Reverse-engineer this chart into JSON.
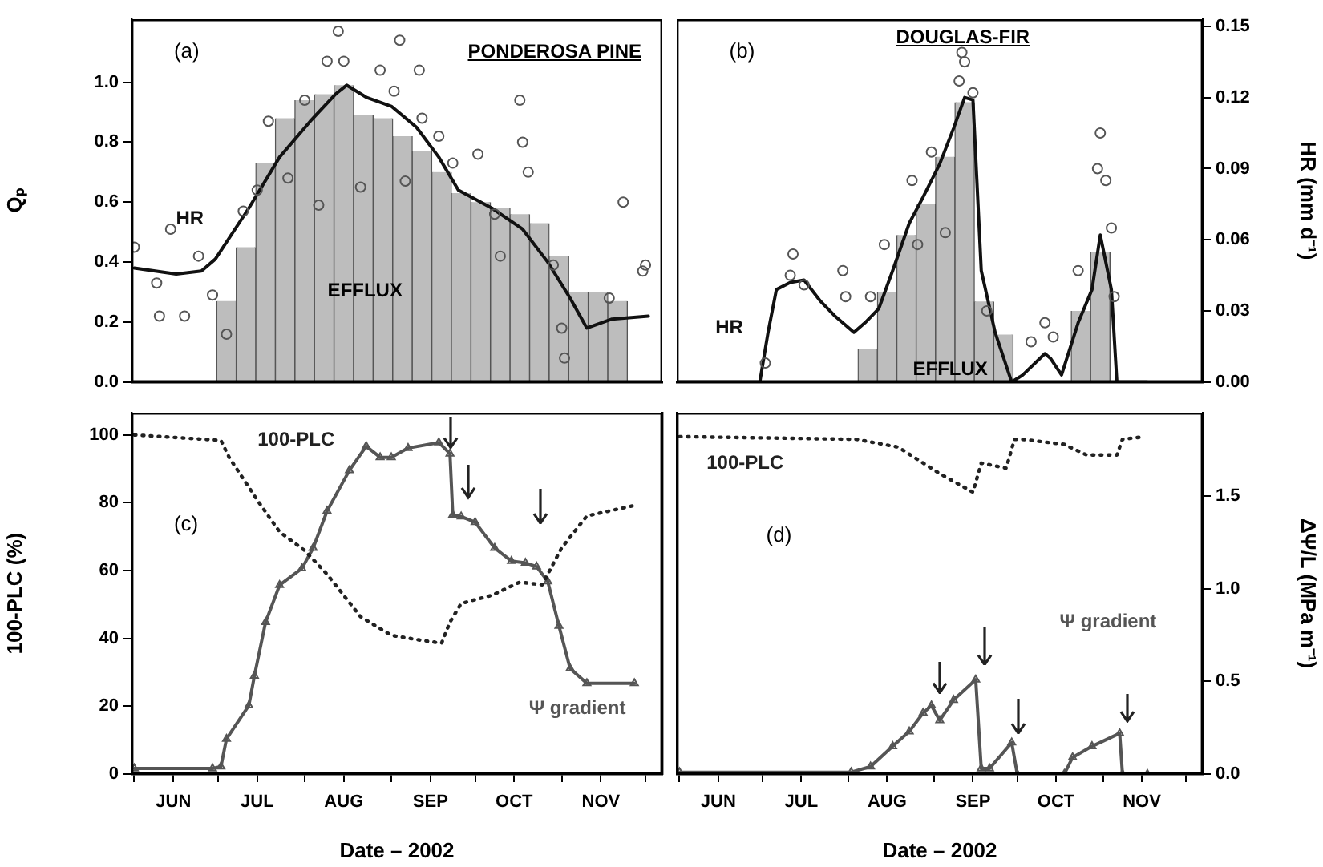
{
  "chart_data": [
    {
      "type": "line",
      "title": "PONDEROSA PINE",
      "ylabel": "Qₚ",
      "annotations": [
        "(a)"
      ],
      "tick_labels": [
        "y"
      ],
      "xlim": [
        "2002-05-31",
        "2002-12-07"
      ],
      "ylim": [
        0,
        1.21
      ],
      "yticks": [
        {
          "value": 0,
          "label": "0.0"
        },
        {
          "value": 0.2,
          "label": "0.2"
        },
        {
          "value": 0.4,
          "label": "0.4"
        },
        {
          "value": 0.6,
          "label": "0.6"
        },
        {
          "value": 0.8,
          "label": "0.8"
        },
        {
          "value": 1,
          "label": "1.0"
        }
      ],
      "series": [
        {
          "name": "EFFLUX",
          "type": "bar",
          "color": "#bdbdbd",
          "x": [
            "2002-07-04",
            "2002-07-11",
            "2002-07-18",
            "2002-07-25",
            "2002-08-01",
            "2002-08-08",
            "2002-08-15",
            "2002-08-22",
            "2002-08-29",
            "2002-09-05",
            "2002-09-12",
            "2002-09-19",
            "2002-09-26",
            "2002-10-03",
            "2002-10-10",
            "2002-10-17",
            "2002-10-24",
            "2002-10-31",
            "2002-11-07",
            "2002-11-14",
            "2002-11-21"
          ],
          "values": [
            0.27,
            0.45,
            0.73,
            0.88,
            0.94,
            0.96,
            0.99,
            0.89,
            0.88,
            0.82,
            0.77,
            0.7,
            0.63,
            0.6,
            0.58,
            0.56,
            0.53,
            0.42,
            0.3,
            0.3,
            0.27
          ]
        },
        {
          "type": "scatter",
          "color": "#555555",
          "marker": "circle",
          "x": [
            "2002-06-01",
            "2002-06-09",
            "2002-06-10",
            "2002-06-14",
            "2002-06-19",
            "2002-06-24",
            "2002-06-29",
            "2002-07-04",
            "2002-07-10",
            "2002-07-15",
            "2002-07-19",
            "2002-07-26",
            "2002-08-01",
            "2002-08-06",
            "2002-08-09",
            "2002-08-13",
            "2002-08-15",
            "2002-08-21",
            "2002-08-28",
            "2002-09-02",
            "2002-09-04",
            "2002-09-06",
            "2002-09-11",
            "2002-09-12",
            "2002-09-18",
            "2002-09-23",
            "2002-10-02",
            "2002-10-08",
            "2002-10-10",
            "2002-10-17",
            "2002-10-18",
            "2002-10-20",
            "2002-10-29",
            "2002-11-01",
            "2002-11-02",
            "2002-11-18",
            "2002-11-23",
            "2002-11-30",
            "2002-12-01"
          ],
          "values": [
            0.45,
            0.33,
            0.22,
            0.51,
            0.22,
            0.42,
            0.29,
            0.16,
            0.57,
            0.64,
            0.87,
            0.68,
            0.94,
            0.59,
            1.07,
            1.17,
            1.07,
            0.65,
            1.04,
            0.97,
            1.14,
            0.67,
            1.04,
            0.88,
            0.82,
            0.73,
            0.76,
            0.56,
            0.42,
            0.94,
            0.8,
            0.7,
            0.39,
            0.18,
            0.08,
            0.28,
            0.6,
            0.37,
            0.39
          ]
        },
        {
          "name": "HR",
          "color": "#111111",
          "marker": "none",
          "x": [
            "2002-06-01",
            "2002-06-16",
            "2002-06-25",
            "2002-06-30",
            "2002-07-12",
            "2002-07-23",
            "2002-08-03",
            "2002-08-12",
            "2002-08-16",
            "2002-08-23",
            "2002-09-01",
            "2002-09-10",
            "2002-09-18",
            "2002-09-25",
            "2002-10-07",
            "2002-10-18",
            "2002-10-27",
            "2002-11-04",
            "2002-11-10",
            "2002-11-19",
            "2002-12-02"
          ],
          "values": [
            0.38,
            0.36,
            0.37,
            0.41,
            0.58,
            0.75,
            0.87,
            0.96,
            0.99,
            0.95,
            0.92,
            0.85,
            0.75,
            0.64,
            0.58,
            0.51,
            0.4,
            0.28,
            0.18,
            0.21,
            0.22
          ]
        }
      ]
    },
    {
      "type": "line",
      "title": "DOUGLAS-FIR",
      "y2label": "HR (mm d⁻¹)",
      "annotations": [
        "(b)"
      ],
      "tick_labels": [
        "y2"
      ],
      "xlim": [
        "2002-05-31",
        "2002-12-07"
      ],
      "y2lim": [
        0,
        0.153
      ],
      "y2ticks": [
        {
          "value": 0,
          "label": "0.00"
        },
        {
          "value": 0.03,
          "label": "0.03"
        },
        {
          "value": 0.06,
          "label": "0.06"
        },
        {
          "value": 0.09,
          "label": "0.09"
        },
        {
          "value": 0.12,
          "label": "0.12"
        },
        {
          "value": 0.15,
          "label": "0.15"
        }
      ],
      "series": [
        {
          "name": "EFFLUX",
          "type": "bar",
          "axis": "y2",
          "color": "#bdbdbd",
          "x": [
            "2002-08-08",
            "2002-08-15",
            "2002-08-22",
            "2002-08-29",
            "2002-09-05",
            "2002-09-12",
            "2002-09-19",
            "2002-09-26",
            "2002-10-03",
            "2002-10-10",
            "2002-10-17",
            "2002-10-24",
            "2002-10-31"
          ],
          "values": [
            0.014,
            0.038,
            0.062,
            0.075,
            0.095,
            0.118,
            0.034,
            0.02,
            0,
            0,
            0,
            0.03,
            0.055
          ]
        },
        {
          "type": "scatter",
          "axis": "y2",
          "color": "#555555",
          "marker": "circle",
          "x": [
            "2002-07-02",
            "2002-07-11",
            "2002-07-12",
            "2002-07-16",
            "2002-07-30",
            "2002-07-31",
            "2002-08-09",
            "2002-08-14",
            "2002-08-24",
            "2002-08-26",
            "2002-08-31",
            "2002-09-05",
            "2002-09-10",
            "2002-09-11",
            "2002-09-12",
            "2002-09-15",
            "2002-09-20",
            "2002-10-06",
            "2002-10-11",
            "2002-10-14",
            "2002-10-23",
            "2002-10-30",
            "2002-10-31",
            "2002-11-02",
            "2002-11-04",
            "2002-11-05"
          ],
          "values": [
            0.008,
            0.045,
            0.054,
            0.041,
            0.047,
            0.036,
            0.036,
            0.058,
            0.085,
            0.058,
            0.097,
            0.063,
            0.127,
            0.139,
            0.135,
            0.122,
            0.03,
            0.017,
            0.025,
            0.019,
            0.047,
            0.09,
            0.105,
            0.085,
            0.065,
            0.036
          ]
        },
        {
          "name": "HR",
          "axis": "y2",
          "color": "#111111",
          "marker": "none",
          "x": [
            "2002-05-31",
            "2002-06-30",
            "2002-07-03",
            "2002-07-06",
            "2002-07-11",
            "2002-07-16",
            "2002-07-22",
            "2002-07-27",
            "2002-08-03",
            "2002-08-07",
            "2002-08-12",
            "2002-08-17",
            "2002-08-23",
            "2002-08-28",
            "2002-09-03",
            "2002-09-08",
            "2002-09-12",
            "2002-09-15",
            "2002-09-18",
            "2002-09-23",
            "2002-09-29",
            "2002-10-03",
            "2002-10-11",
            "2002-10-13",
            "2002-10-17",
            "2002-10-23",
            "2002-10-28",
            "2002-10-31",
            "2002-11-04",
            "2002-11-06",
            "2002-11-17"
          ],
          "values": [
            0,
            0,
            0.021,
            0.039,
            0.042,
            0.043,
            0.034,
            0.028,
            0.021,
            0.025,
            0.031,
            0.047,
            0.067,
            0.078,
            0.092,
            0.107,
            0.12,
            0.119,
            0.047,
            0.021,
            0,
            0.003,
            0.012,
            0.01,
            0.003,
            0.025,
            0.039,
            0.062,
            0.039,
            0,
            0
          ]
        }
      ]
    },
    {
      "type": "line",
      "xlabel": "Date – 2002",
      "ylabel": "100-PLC (%)",
      "annotations": [
        "(c)"
      ],
      "tick_labels": [
        "x",
        "y"
      ],
      "xlim": [
        "2002-05-31",
        "2002-12-07"
      ],
      "xticks": [
        {
          "value": "2002-06-01",
          "label": null
        },
        {
          "value": "2002-06-15",
          "label": "JUN"
        },
        {
          "value": "2002-07-01",
          "label": null
        },
        {
          "value": "2002-07-15",
          "label": "JUL"
        },
        {
          "value": "2002-08-01",
          "label": null
        },
        {
          "value": "2002-08-15",
          "label": "AUG"
        },
        {
          "value": "2002-09-01",
          "label": null
        },
        {
          "value": "2002-09-15",
          "label": "SEP"
        },
        {
          "value": "2002-10-01",
          "label": null
        },
        {
          "value": "2002-10-15",
          "label": "OCT"
        },
        {
          "value": "2002-11-01",
          "label": null
        },
        {
          "value": "2002-11-15",
          "label": "NOV"
        },
        {
          "value": "2002-12-01",
          "label": null
        }
      ],
      "ylim": [
        0,
        106.5
      ],
      "yticks": [
        0,
        20,
        40,
        60,
        80,
        100
      ],
      "y2lim": [
        0,
        1.95
      ],
      "series": [
        {
          "name": "100-PLC",
          "color": "#222222",
          "marker": "none",
          "line_style": "dotted",
          "x": [
            "2002-06-01",
            "2002-07-02",
            "2002-07-05",
            "2002-07-15",
            "2002-07-23",
            "2002-08-01",
            "2002-08-09",
            "2002-08-21",
            "2002-09-01",
            "2002-09-12",
            "2002-09-19",
            "2002-09-22",
            "2002-09-26",
            "2002-10-07",
            "2002-10-17",
            "2002-10-25",
            "2002-11-01",
            "2002-11-10",
            "2002-11-27"
          ],
          "values": [
            100,
            98.4,
            93.3,
            80.8,
            71.4,
            65.9,
            58.9,
            46.4,
            40.9,
            39.4,
            38.6,
            44.8,
            50.3,
            52.7,
            56.6,
            55.8,
            66.7,
            76.1,
            79.2
          ]
        },
        {
          "name": "Ψ gradient",
          "axis": "y2",
          "color": "#555555",
          "marker": "triangle",
          "x": [
            "2002-06-01",
            "2002-06-29",
            "2002-07-02",
            "2002-07-04",
            "2002-07-12",
            "2002-07-14",
            "2002-07-18",
            "2002-07-23",
            "2002-07-31",
            "2002-08-04",
            "2002-08-09",
            "2002-08-17",
            "2002-08-23",
            "2002-08-28",
            "2002-09-01",
            "2002-09-07",
            "2002-09-18",
            "2002-09-22",
            "2002-09-23",
            "2002-09-26",
            "2002-10-01",
            "2002-10-08",
            "2002-10-14",
            "2002-10-19",
            "2002-10-23",
            "2002-10-27",
            "2002-10-31",
            "2002-11-04",
            "2002-11-10",
            "2002-11-27"
          ],
          "values": [
            0.03,
            0.03,
            0.04,
            0.19,
            0.37,
            0.53,
            0.82,
            1.02,
            1.11,
            1.22,
            1.42,
            1.64,
            1.77,
            1.71,
            1.71,
            1.76,
            1.79,
            1.73,
            1.4,
            1.39,
            1.36,
            1.22,
            1.15,
            1.14,
            1.12,
            1.04,
            0.8,
            0.57,
            0.49,
            0.49
          ]
        }
      ]
    },
    {
      "type": "line",
      "xlabel": "Date – 2002",
      "y2label": "ΔΨ/L (MPa m⁻¹)",
      "annotations": [
        "(d)"
      ],
      "tick_labels": [
        "x",
        "y2"
      ],
      "xlim": [
        "2002-05-31",
        "2002-12-07"
      ],
      "xticks": [
        {
          "value": "2002-06-01",
          "label": null
        },
        {
          "value": "2002-06-15",
          "label": "JUN"
        },
        {
          "value": "2002-07-01",
          "label": null
        },
        {
          "value": "2002-07-15",
          "label": "JUL"
        },
        {
          "value": "2002-08-01",
          "label": null
        },
        {
          "value": "2002-08-15",
          "label": "AUG"
        },
        {
          "value": "2002-09-01",
          "label": null
        },
        {
          "value": "2002-09-15",
          "label": "SEP"
        },
        {
          "value": "2002-10-01",
          "label": null
        },
        {
          "value": "2002-10-15",
          "label": "OCT"
        },
        {
          "value": "2002-11-01",
          "label": null
        },
        {
          "value": "2002-11-15",
          "label": "NOV"
        },
        {
          "value": "2002-12-01",
          "label": null
        }
      ],
      "ylim": [
        0,
        106.5
      ],
      "y2lim": [
        0,
        1.95
      ],
      "y2ticks": [
        {
          "value": 0,
          "label": "0.0"
        },
        {
          "value": 0.5,
          "label": "0.5"
        },
        {
          "value": 1,
          "label": "1.0"
        },
        {
          "value": 1.5,
          "label": "1.5"
        }
      ],
      "series": [
        {
          "name": "100-PLC",
          "color": "#222222",
          "marker": "none",
          "line_style": "dotted",
          "x": [
            "2002-06-01",
            "2002-08-04",
            "2002-08-19",
            "2002-09-03",
            "2002-09-15",
            "2002-09-18",
            "2002-09-27",
            "2002-09-30",
            "2002-10-03",
            "2002-10-18",
            "2002-10-26",
            "2002-11-06",
            "2002-11-08",
            "2002-11-16"
          ],
          "values": [
            99.5,
            98.7,
            96.4,
            88.6,
            83.1,
            91.7,
            90.2,
            98.7,
            98.7,
            97.2,
            94.1,
            94.1,
            98.7,
            99.5
          ]
        },
        {
          "name": "Ψ gradient",
          "axis": "y2",
          "color": "#555555",
          "marker": "triangle",
          "x": [
            "2002-06-01",
            "2002-08-02",
            "2002-08-09",
            "2002-08-17",
            "2002-08-23",
            "2002-08-28",
            "2002-08-31",
            "2002-09-03",
            "2002-09-08",
            "2002-09-16",
            "2002-09-18",
            "2002-09-21",
            "2002-09-29",
            "2002-10-01",
            "2002-10-18",
            "2002-10-21",
            "2002-10-28",
            "2002-11-07",
            "2002-11-08",
            "2002-11-17"
          ],
          "values": [
            0.01,
            0.01,
            0.04,
            0.15,
            0.23,
            0.33,
            0.37,
            0.29,
            0.4,
            0.51,
            0.03,
            0.03,
            0.17,
            0,
            0,
            0.09,
            0.15,
            0.22,
            0,
            0
          ]
        }
      ]
    }
  ]
}
